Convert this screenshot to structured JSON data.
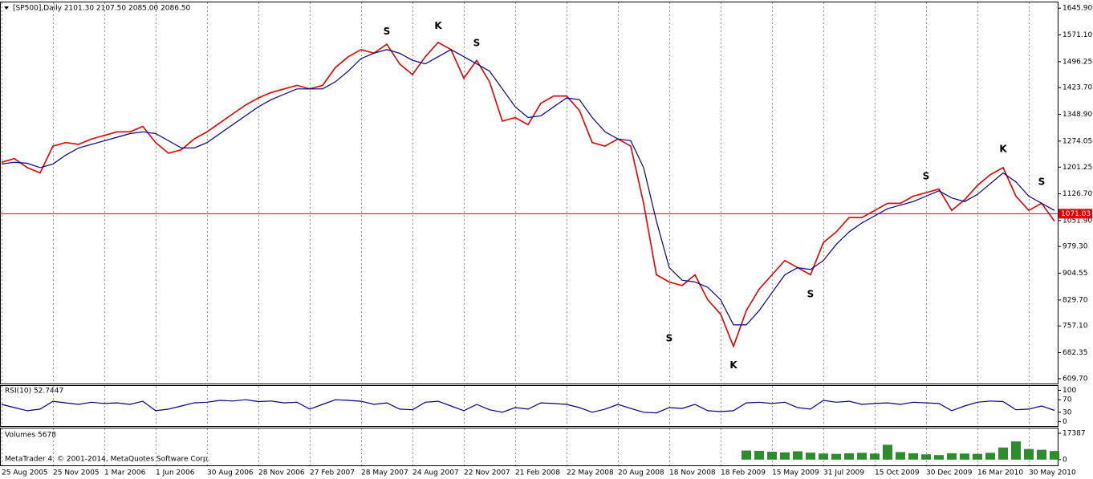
{
  "chart_data": [
    {
      "type": "line",
      "title": "[SP500],Daily  2101.30 2107.50 2085.00 2086.50",
      "ylim": [
        596,
        1662
      ],
      "yticks": [
        {
          "value": 1645.9,
          "label": "1645.90"
        },
        {
          "value": 1571.1,
          "label": "1571.10"
        },
        {
          "value": 1496.25,
          "label": "1496.25"
        },
        {
          "value": 1423.7,
          "label": "1423.70"
        },
        {
          "value": 1348.9,
          "label": "1348.90"
        },
        {
          "value": 1274.05,
          "label": "1274.05"
        },
        {
          "value": 1201.25,
          "label": "1201.25"
        },
        {
          "value": 1126.7,
          "label": "1126.70"
        },
        {
          "value": 1051.9,
          "label": "1051.90"
        },
        {
          "value": 979.3,
          "label": "979.30"
        },
        {
          "value": 904.55,
          "label": "904.55"
        },
        {
          "value": 829.7,
          "label": "829.70"
        },
        {
          "value": 757.1,
          "label": "757.10"
        },
        {
          "value": 682.35,
          "label": "682.35"
        },
        {
          "value": 609.7,
          "label": "609.70"
        }
      ],
      "hline": 1071.03,
      "hline_color": "#e00000",
      "series": [
        {
          "color": "#e00000",
          "values": [
            1215,
            1225,
            1200,
            1185,
            1260,
            1270,
            1265,
            1280,
            1290,
            1300,
            1300,
            1315,
            1270,
            1240,
            1250,
            1280,
            1300,
            1325,
            1350,
            1375,
            1395,
            1410,
            1420,
            1430,
            1420,
            1430,
            1480,
            1510,
            1530,
            1520,
            1545,
            1490,
            1460,
            1510,
            1550,
            1530,
            1450,
            1500,
            1440,
            1330,
            1340,
            1320,
            1380,
            1400,
            1400,
            1360,
            1270,
            1260,
            1280,
            1260,
            1100,
            900,
            880,
            870,
            900,
            830,
            790,
            700,
            800,
            860,
            900,
            940,
            920,
            900,
            990,
            1020,
            1060,
            1060,
            1080,
            1100,
            1100,
            1120,
            1130,
            1140,
            1080,
            1110,
            1150,
            1180,
            1200,
            1120,
            1080,
            1100,
            1050
          ]
        },
        {
          "color": "#000080",
          "values": [
            1210,
            1215,
            1212,
            1200,
            1210,
            1235,
            1255,
            1265,
            1275,
            1285,
            1295,
            1300,
            1295,
            1275,
            1255,
            1255,
            1270,
            1295,
            1320,
            1345,
            1370,
            1390,
            1405,
            1420,
            1420,
            1420,
            1440,
            1470,
            1505,
            1520,
            1530,
            1520,
            1500,
            1490,
            1510,
            1530,
            1510,
            1490,
            1470,
            1420,
            1370,
            1340,
            1345,
            1370,
            1395,
            1390,
            1340,
            1300,
            1280,
            1275,
            1200,
            1050,
            920,
            885,
            880,
            865,
            830,
            760,
            760,
            800,
            850,
            900,
            920,
            915,
            940,
            985,
            1020,
            1045,
            1065,
            1085,
            1095,
            1105,
            1120,
            1135,
            1115,
            1105,
            1125,
            1155,
            1185,
            1160,
            1120,
            1100,
            1080
          ]
        }
      ],
      "annotations": [
        {
          "text": "S",
          "index": 30,
          "value": 1580
        },
        {
          "text": "K",
          "index": 34,
          "value": 1596
        },
        {
          "text": "S",
          "index": 37,
          "value": 1547
        },
        {
          "text": "S",
          "index": 52,
          "value": 722
        },
        {
          "text": "K",
          "index": 57,
          "value": 646
        },
        {
          "text": "S",
          "index": 63,
          "value": 845
        },
        {
          "text": "S",
          "index": 72,
          "value": 1175
        },
        {
          "text": "K",
          "index": 78,
          "value": 1251
        },
        {
          "text": "S",
          "index": 81,
          "value": 1159
        }
      ]
    },
    {
      "type": "line",
      "title": "RSI(10) 52.7447",
      "ylim": [
        -14,
        114
      ],
      "yticks": [
        100,
        70,
        30,
        0
      ],
      "series": [
        {
          "color": "#000080",
          "values": [
            55,
            45,
            35,
            40,
            65,
            60,
            55,
            62,
            58,
            60,
            55,
            65,
            35,
            40,
            50,
            60,
            62,
            68,
            66,
            70,
            64,
            66,
            60,
            62,
            40,
            55,
            70,
            68,
            65,
            55,
            60,
            40,
            38,
            62,
            65,
            50,
            35,
            55,
            38,
            30,
            45,
            40,
            60,
            58,
            55,
            45,
            30,
            40,
            55,
            42,
            30,
            28,
            45,
            42,
            55,
            35,
            32,
            35,
            60,
            62,
            58,
            62,
            45,
            40,
            68,
            62,
            65,
            55,
            58,
            60,
            55,
            62,
            60,
            58,
            35,
            50,
            62,
            66,
            64,
            38,
            40,
            50,
            36
          ]
        }
      ]
    },
    {
      "type": "bar",
      "title": "Volumes 5678",
      "footer": "MetaTrader 4, © 2001-2014, MetaQuotes Software Corp.",
      "ylim": [
        -3800,
        20600
      ],
      "yticks": [
        17387,
        0
      ],
      "color": "#2e8b2e",
      "categories": [
        "25 Aug 2005",
        null,
        null,
        null,
        "25 Nov 2005",
        null,
        null,
        null,
        "1 Mar 2006",
        null,
        null,
        null,
        "1 Jun 2006",
        null,
        null,
        null,
        "30 Aug 2006",
        null,
        null,
        null,
        "28 Nov 2006",
        null,
        null,
        null,
        "27 Feb 2007",
        null,
        null,
        null,
        "28 May 2007",
        null,
        null,
        null,
        "24 Aug 2007",
        null,
        null,
        null,
        "22 Nov 2007",
        null,
        null,
        null,
        "21 Feb 2008",
        null,
        null,
        null,
        "22 May 2008",
        null,
        null,
        null,
        "20 Aug 2008",
        null,
        null,
        null,
        "18 Nov 2008",
        null,
        null,
        null,
        "18 Feb 2009",
        null,
        null,
        null,
        "15 May 2009",
        null,
        null,
        null,
        "31 Jul 2009",
        null,
        null,
        null,
        "15 Oct 2009",
        null,
        null,
        null,
        "30 Dec 2009",
        null,
        null,
        null,
        "16 Mar 2010",
        null,
        null,
        null,
        "30 May 2010",
        null,
        null
      ],
      "values": [
        0,
        0,
        0,
        0,
        0,
        0,
        0,
        0,
        0,
        0,
        0,
        0,
        0,
        0,
        0,
        0,
        0,
        0,
        0,
        0,
        0,
        0,
        0,
        0,
        0,
        0,
        0,
        0,
        0,
        0,
        0,
        0,
        0,
        0,
        0,
        0,
        0,
        0,
        0,
        0,
        0,
        0,
        0,
        0,
        0,
        0,
        0,
        0,
        0,
        0,
        0,
        0,
        0,
        0,
        0,
        0,
        0,
        0,
        6000,
        5800,
        5200,
        4800,
        5500,
        4600,
        4000,
        3800,
        4200,
        4500,
        4000,
        9800,
        5000,
        4200,
        3500,
        3000,
        4200,
        4000,
        3800,
        4500,
        8000,
        12000,
        7000,
        6500,
        5678
      ]
    }
  ]
}
